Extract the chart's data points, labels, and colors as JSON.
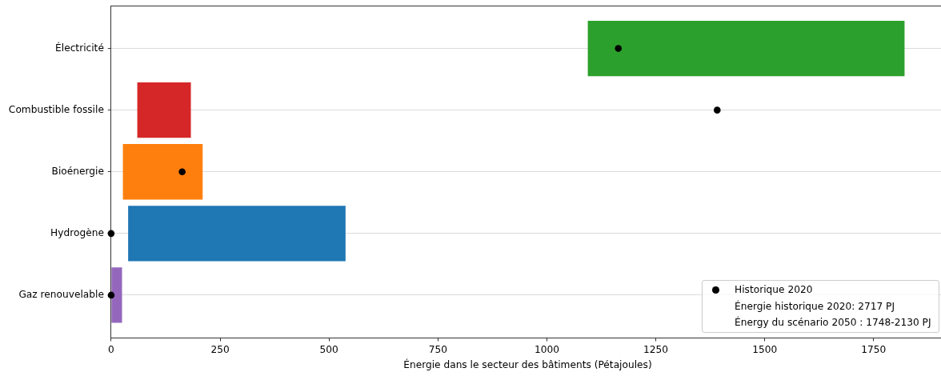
{
  "chart_data": {
    "type": "bar",
    "orientation": "horizontal",
    "xlabel": "Énergie dans le secteur des bâtiments (Pétajoules)",
    "categories": [
      "Électricité",
      "Combustible fossile",
      "Bioénergie",
      "Hydrogène",
      "Gaz renouvelable"
    ],
    "series": [
      {
        "colors": [
          "#2ca02c",
          "#d62728",
          "#ff7f0e",
          "#1f77b4",
          "#9467bd"
        ],
        "base": [
          1094,
          60,
          27,
          39,
          0
        ],
        "values": [
          727,
          123,
          183,
          499,
          25
        ]
      },
      {
        "type": "scatter",
        "name": "Historique 2020",
        "color": "#000000",
        "marker": "circle",
        "x": [
          "Électricité",
          "Combustible fossile",
          "Bioénergie",
          "Hydrogène",
          "Gaz renouvelable"
        ],
        "values": [
          1164,
          1391,
          163,
          0,
          0
        ]
      }
    ],
    "xlim": [
      0,
      1912
    ],
    "xticks": [
      0,
      250,
      500,
      750,
      1000,
      1250,
      1500,
      1750
    ],
    "grid": "y",
    "legend": "bottom right",
    "annotations": [
      "Énergie historique 2020: 2717 PJ",
      "Énergy du scénario 2050 : 1748-2130 PJ"
    ]
  }
}
